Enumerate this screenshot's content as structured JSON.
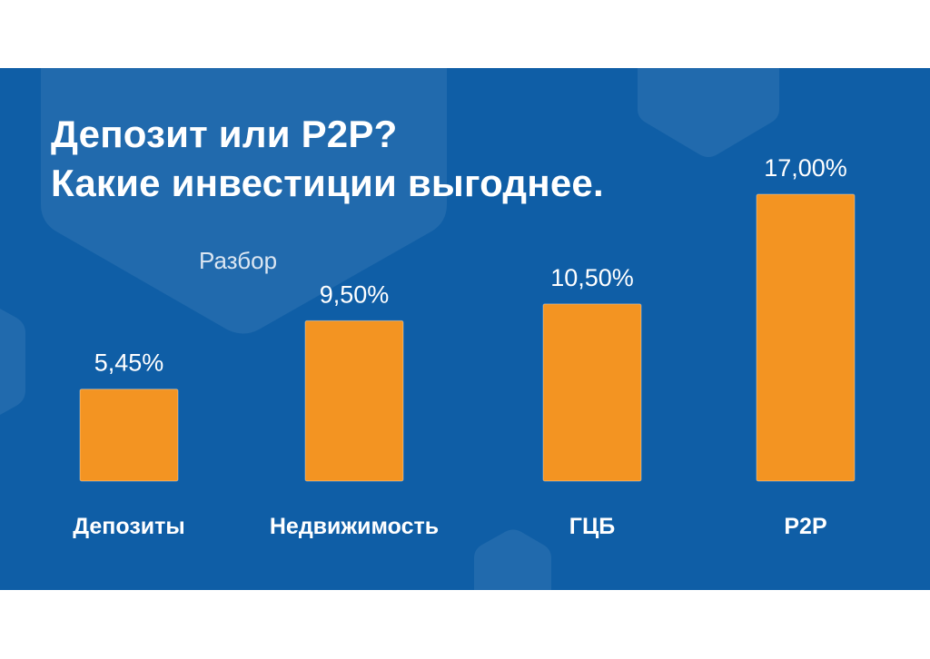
{
  "title_line1": "Депозит или P2P?",
  "title_line2": "Какие инвестиции выгоднее.",
  "subtitle": "Разбор",
  "colors": {
    "background": "#0f5ea6",
    "bar": "#f39422",
    "text": "#ffffff"
  },
  "chart_data": {
    "type": "bar",
    "categories": [
      "Депозиты",
      "Недвижимость",
      "ГЦБ",
      "P2P"
    ],
    "values": [
      5.45,
      9.5,
      10.5,
      17.0
    ],
    "value_labels": [
      "5,45%",
      "9,50%",
      "10,50%",
      "17,00%"
    ],
    "title": "Депозит или P2P? Какие инвестиции выгоднее.",
    "xlabel": "",
    "ylabel": "",
    "ylim": [
      0,
      17
    ],
    "grid": false,
    "legend": "none"
  }
}
